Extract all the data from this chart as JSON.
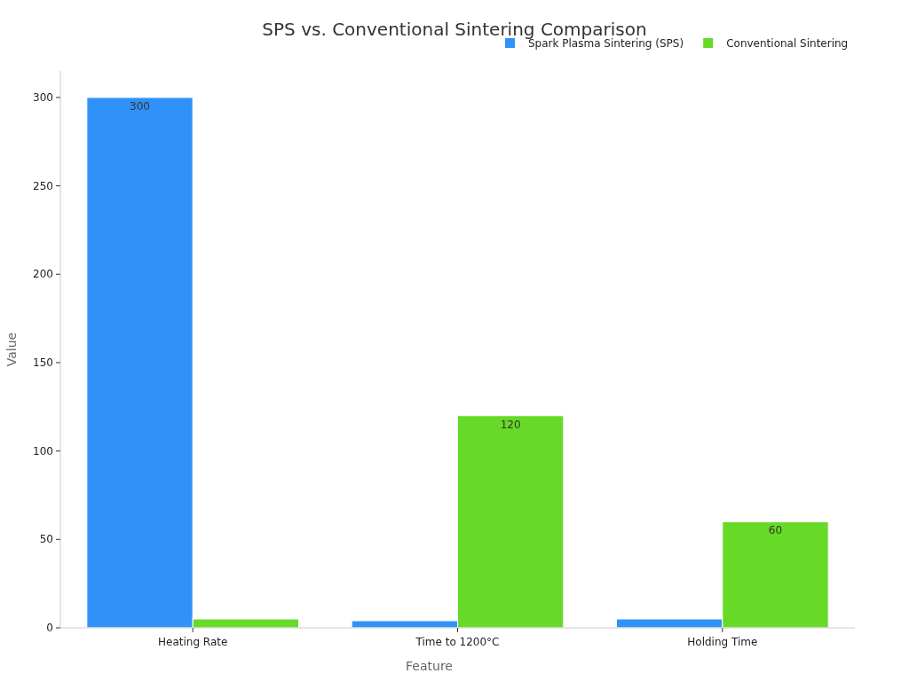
{
  "chart_data": {
    "type": "bar",
    "title": "SPS vs. Conventional Sintering Comparison",
    "xlabel": "Feature",
    "ylabel": "Value",
    "categories": [
      "Heating Rate",
      "Time to 1200°C",
      "Holding Time"
    ],
    "series": [
      {
        "name": "Spark Plasma Sintering (SPS)",
        "color": "#3092f9",
        "values": [
          300,
          4,
          5
        ],
        "value_labels": [
          "300",
          null,
          null
        ]
      },
      {
        "name": "Conventional Sintering",
        "color": "#66da26",
        "values": [
          5,
          120,
          60
        ],
        "value_labels": [
          null,
          "120",
          "60"
        ]
      }
    ],
    "ylim": [
      0,
      315
    ],
    "yticks": [
      0,
      50,
      100,
      150,
      200,
      250,
      300
    ],
    "grid": false,
    "legend": "top right"
  }
}
